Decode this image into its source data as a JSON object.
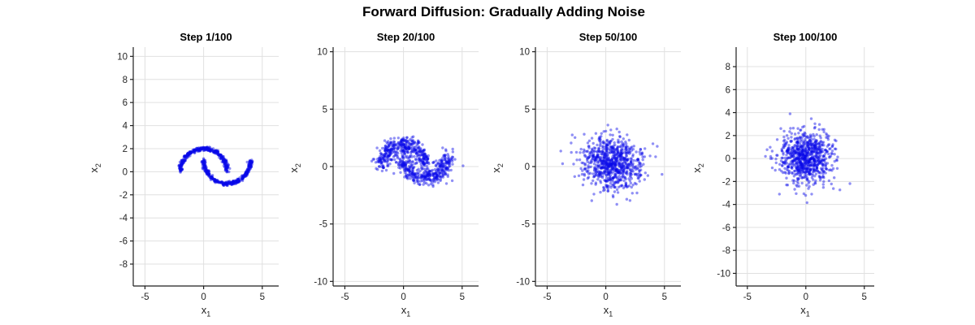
{
  "figure": {
    "title": "Forward Diffusion: Gradually Adding Noise",
    "background": "#ffffff"
  },
  "chart_data": {
    "type": "scatter",
    "title": "Forward Diffusion: Gradually Adding Noise",
    "xlabel": {
      "base": "x",
      "sub": "1"
    },
    "ylabel": {
      "base": "x",
      "sub": "2"
    },
    "legend": "none",
    "grid": true,
    "marker": {
      "color": "#0808e8",
      "opacity": 0.45,
      "radius_px": 1.7
    },
    "grid_color": "#e0e0e0",
    "axis_color": "#1f1f1f",
    "tick_label_color": "#262626",
    "generator": {
      "dataset": "two-moons",
      "n_points": 800,
      "moon_radius": 2,
      "moon1_center": [
        0,
        0
      ],
      "moon1_arc": "upper",
      "moon2_center": [
        2,
        1
      ],
      "moon2_arc": "lower",
      "base_noise_std": 0.08,
      "seed": 7
    },
    "subplots": [
      {
        "title": "Step 1/100",
        "step": 1,
        "total_steps": 100,
        "signal_scale": 1.0,
        "noise_std": 0.02,
        "seed": 11,
        "xlim": [
          -6,
          6.4
        ],
        "ylim": [
          -9.9,
          10.8
        ],
        "xticks": [
          -5,
          0,
          5
        ],
        "yticks": [
          -8,
          -6,
          -4,
          -2,
          0,
          2,
          4,
          6,
          8,
          10
        ]
      },
      {
        "title": "Step 20/100",
        "step": 20,
        "total_steps": 100,
        "signal_scale": 0.93,
        "noise_std": 0.34,
        "seed": 12,
        "xlim": [
          -6,
          6.4
        ],
        "ylim": [
          -10.4,
          10.4
        ],
        "xticks": [
          -5,
          0,
          5
        ],
        "yticks": [
          -10,
          -5,
          0,
          5,
          10
        ]
      },
      {
        "title": "Step 50/100",
        "step": 50,
        "total_steps": 100,
        "signal_scale": 0.5,
        "noise_std": 1.0,
        "seed": 13,
        "xlim": [
          -6,
          6.4
        ],
        "ylim": [
          -10.4,
          10.4
        ],
        "xticks": [
          -5,
          0,
          5
        ],
        "yticks": [
          -10,
          -5,
          0,
          5,
          10
        ]
      },
      {
        "title": "Step 100/100",
        "step": 100,
        "total_steps": 100,
        "signal_scale": 0.04,
        "noise_std": 1.15,
        "seed": 14,
        "xlim": [
          -5.96,
          5.85
        ],
        "ylim": [
          -11.1,
          9.7
        ],
        "xticks": [
          -5,
          0,
          5
        ],
        "yticks": [
          -10,
          -8,
          -6,
          -4,
          -2,
          0,
          2,
          4,
          6,
          8
        ]
      }
    ]
  }
}
